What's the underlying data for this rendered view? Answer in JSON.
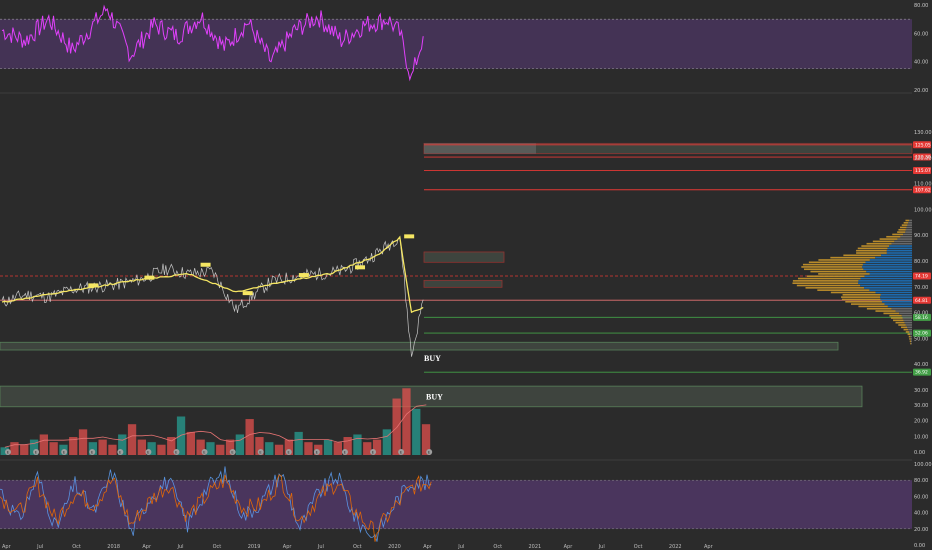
{
  "chart_data": [
    {
      "type": "line",
      "panel": "rsi",
      "ylim": [
        20,
        80
      ],
      "y_ticks": [
        "80.00",
        "60.00",
        "40.00",
        "20.00"
      ],
      "band": [
        35,
        70
      ],
      "line_color": "#e040fb",
      "band_color": "#5a3a78",
      "series": [
        {
          "x": [
            "2017-04",
            "2017-06",
            "2017-08",
            "2017-10",
            "2018-01",
            "2018-03",
            "2018-05",
            "2018-07",
            "2018-09",
            "2018-11",
            "2019-01",
            "2019-03",
            "2019-05",
            "2019-07",
            "2019-09",
            "2019-11",
            "2020-01",
            "2020-02",
            "2020-03",
            "2020-04"
          ],
          "values": [
            62,
            55,
            70,
            48,
            78,
            45,
            66,
            58,
            72,
            50,
            68,
            40,
            62,
            72,
            55,
            66,
            70,
            60,
            28,
            58
          ]
        }
      ]
    },
    {
      "type": "line",
      "panel": "price",
      "ylim": [
        30,
        130
      ],
      "y_ticks": [
        "130.00",
        "120.00",
        "110.00",
        "100.00",
        "90.00",
        "80.00",
        "70.00",
        "60.00",
        "50.00",
        "40.00",
        "30.00"
      ],
      "series": [
        {
          "x": [
            "2017-04",
            "2017-06",
            "2017-08",
            "2017-10",
            "2017-12",
            "2018-02",
            "2018-04",
            "2018-06",
            "2018-08",
            "2018-10",
            "2018-12",
            "2019-01",
            "2019-03",
            "2019-05",
            "2019-07",
            "2019-09",
            "2019-11",
            "2020-01",
            "2020-02",
            "2020-03",
            "2020-04"
          ],
          "values": [
            64,
            67,
            66,
            69,
            70,
            71,
            73,
            77,
            75,
            76,
            61,
            65,
            72,
            74,
            75,
            76,
            80,
            86,
            90,
            43,
            65
          ],
          "color": "#e0e0e0"
        },
        {
          "x": [
            "2017-04",
            "2017-08",
            "2017-12",
            "2018-04",
            "2018-08",
            "2018-12",
            "2019-04",
            "2019-08",
            "2019-12",
            "2020-02",
            "2020-03",
            "2020-04"
          ],
          "values": [
            64,
            67,
            70,
            73,
            75,
            68,
            72,
            75,
            82,
            89,
            60,
            62
          ],
          "color": "#f5e663"
        }
      ],
      "price_tags": [
        {
          "label": "125.05",
          "value": 125.05,
          "color": "#e53935"
        },
        {
          "label": "120.30",
          "value": 120.3,
          "color": "#e53935"
        },
        {
          "label": "115.07",
          "value": 115.07,
          "color": "#e53935"
        },
        {
          "label": "107.62",
          "value": 107.62,
          "color": "#e53935"
        },
        {
          "label": "74.19",
          "value": 74.19,
          "color": "#e53935"
        },
        {
          "label": "64.81",
          "value": 64.81,
          "color": "#e53935"
        },
        {
          "label": "58.16",
          "value": 58.16,
          "color": "#43a047"
        },
        {
          "label": "52.06",
          "value": 52.06,
          "color": "#43a047"
        },
        {
          "label": "36.92",
          "value": 36.92,
          "color": "#43a047"
        }
      ],
      "annotations": [
        {
          "label": "BUY",
          "value": 42.5
        },
        {
          "label": "BUY",
          "value": 27.5
        }
      ],
      "reference_lines": [
        {
          "value": 125.05,
          "color": "#e53935"
        },
        {
          "value": 120.3,
          "color": "#e53935"
        },
        {
          "value": 115.07,
          "color": "#e53935"
        },
        {
          "value": 107.62,
          "color": "#e53935"
        },
        {
          "value": 74.19,
          "color": "#e53935",
          "dashed": true
        },
        {
          "value": 64.81,
          "color": "#e57373"
        },
        {
          "value": 58.16,
          "color": "#43a047"
        },
        {
          "value": 52.06,
          "color": "#43a047"
        },
        {
          "value": 36.92,
          "color": "#43a047"
        }
      ]
    },
    {
      "type": "bar",
      "panel": "volume",
      "ylim": [
        0,
        30
      ],
      "y_ticks": [
        "30.00",
        "20.00",
        "10.00",
        "0.00"
      ],
      "values": [
        3,
        5,
        4,
        6,
        8,
        5,
        4,
        7,
        10,
        5,
        6,
        4,
        8,
        12,
        6,
        5,
        4,
        7,
        15,
        9,
        6,
        5,
        4,
        6,
        8,
        14,
        7,
        5,
        4,
        6,
        9,
        5,
        4,
        6,
        5,
        7,
        8,
        5,
        6,
        10,
        22,
        26,
        18,
        12
      ]
    },
    {
      "type": "line",
      "panel": "stochastic",
      "ylim": [
        0,
        100
      ],
      "y_ticks": [
        "100.00",
        "80.00",
        "60.00",
        "40.00",
        "20.00",
        "0.00"
      ],
      "band": [
        20,
        80
      ],
      "band_color": "#5a3a78",
      "series": [
        {
          "values": [
            70,
            30,
            85,
            20,
            75,
            40,
            90,
            15,
            60,
            80,
            25,
            70,
            88,
            35,
            55,
            90,
            20,
            65,
            85,
            30,
            10,
            50,
            80,
            75
          ],
          "color": "#5c9cf0"
        },
        {
          "values": [
            60,
            40,
            75,
            30,
            65,
            50,
            80,
            25,
            55,
            75,
            35,
            60,
            80,
            45,
            50,
            82,
            30,
            58,
            78,
            40,
            15,
            45,
            72,
            78
          ],
          "color": "#ef6c00"
        }
      ]
    }
  ],
  "x_axis": {
    "ticks": [
      "Apr",
      "Jul",
      "Oct",
      "2018",
      "Apr",
      "Jul",
      "Oct",
      "2019",
      "Apr",
      "Jul",
      "Oct",
      "2020",
      "Apr",
      "Jul",
      "Oct",
      "2021",
      "Apr",
      "Jul",
      "Oct",
      "2022",
      "Apr"
    ]
  },
  "colors": {
    "background": "#2b2b2b",
    "zone_fill": "#4e5a4e",
    "profile_blue": "#1e6fb5",
    "profile_gold": "#c9962a"
  },
  "event_badges": [
    "E"
  ]
}
